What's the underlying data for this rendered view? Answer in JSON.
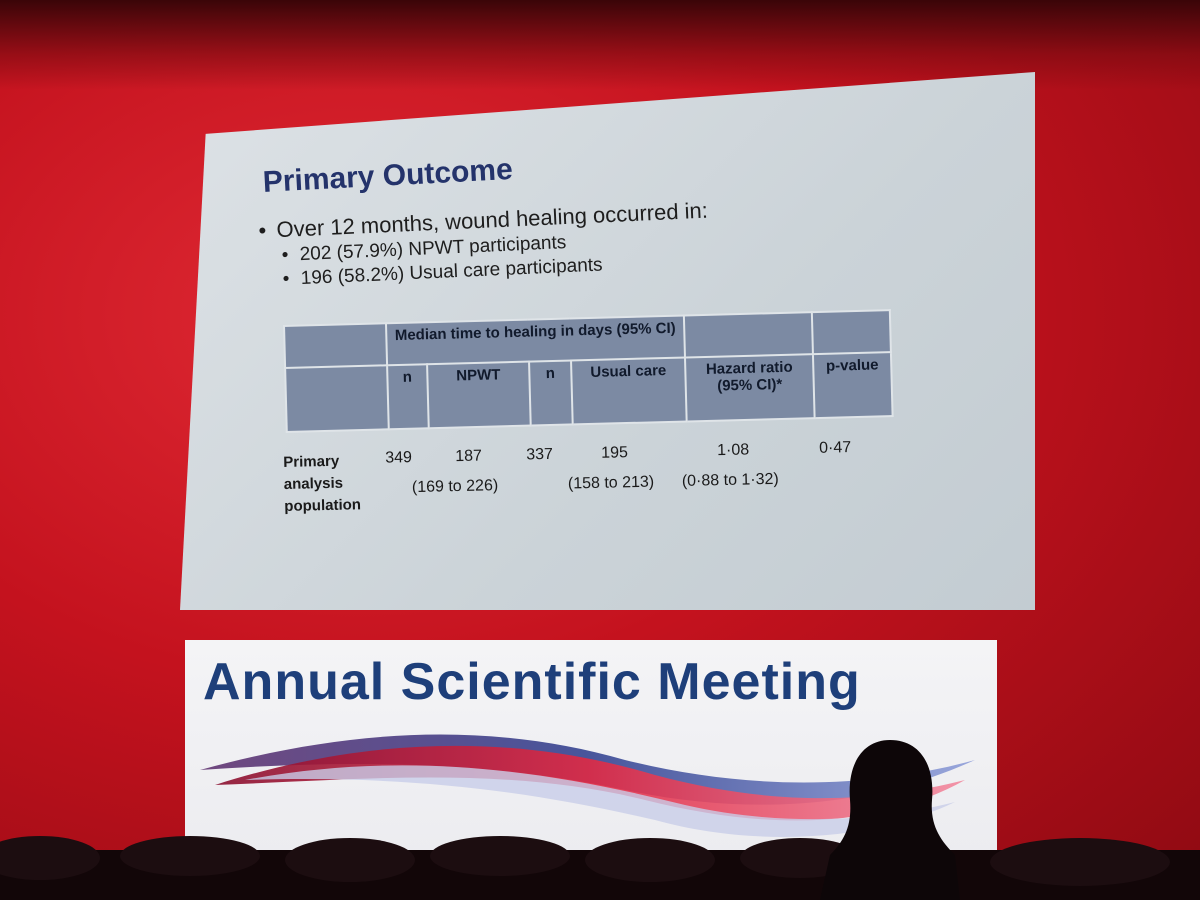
{
  "slide": {
    "title": "Primary Outcome",
    "bullet": "Over 12 months, wound healing occurred in:",
    "sub_bullets": [
      "202 (57.9%) NPWT participants",
      "196 (58.2%) Usual care participants"
    ],
    "table": {
      "group_header": "Median time to healing in days (95% CI)",
      "headers": [
        "n",
        "NPWT",
        "n",
        "Usual care",
        "Hazard ratio (95% CI)*",
        "p-value"
      ],
      "rows": [
        {
          "label": "Primary analysis population",
          "n1": "349",
          "npwt": "187",
          "npwt_ci": "(169 to 226)",
          "n2": "337",
          "usual_care": "195",
          "usual_care_ci": "(158 to 213)",
          "hazard_ratio": "1·08",
          "hazard_ratio_ci": "(0·88 to 1·32)",
          "p_value": "0·47"
        }
      ]
    }
  },
  "banner": {
    "title": "Annual Scientific Meeting",
    "colors": {
      "text": "#1e3f7a",
      "wave_red": "#d6203a",
      "wave_blue": "#2a3a8c"
    }
  },
  "scene": {
    "backdrop_color": "#c4121e",
    "screen_color": "#d3d9de",
    "table_header_color": "#7c8aa3"
  }
}
